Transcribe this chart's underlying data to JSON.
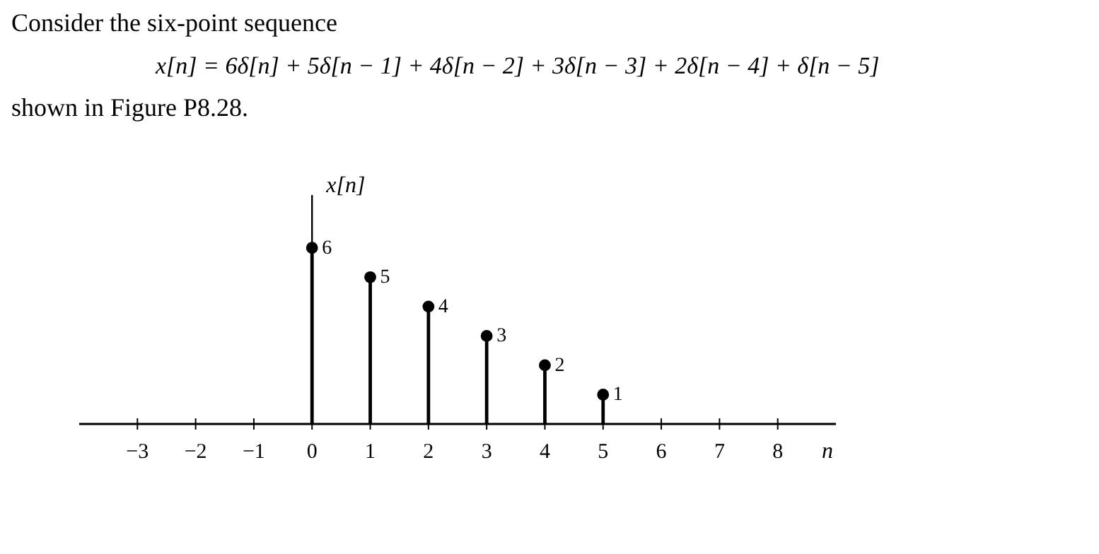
{
  "chart_data": {
    "type": "lollipop",
    "title": "Consider the six-point sequence",
    "subtitle": "x[n] = 6δ[n] + 5δ[n − 1] + 4δ[n − 2] + 3δ[n − 3] + 2δ[n − 4] + δ[n − 5]",
    "annotations": [
      "shown in Figure P8.28."
    ],
    "xlabel": "n",
    "ylabel": "x[n]",
    "x": [
      0,
      1,
      2,
      3,
      4,
      5
    ],
    "values": [
      6,
      5,
      4,
      3,
      2,
      1
    ],
    "color": "#000000",
    "xlim": [
      -4,
      9
    ],
    "xticks": [
      -3,
      -2,
      -1,
      0,
      1,
      2,
      3,
      4,
      5,
      6,
      7,
      8
    ],
    "ylim": [
      0,
      7.8
    ],
    "tick_labels": "x",
    "data_labels": true,
    "marker": "circle"
  }
}
